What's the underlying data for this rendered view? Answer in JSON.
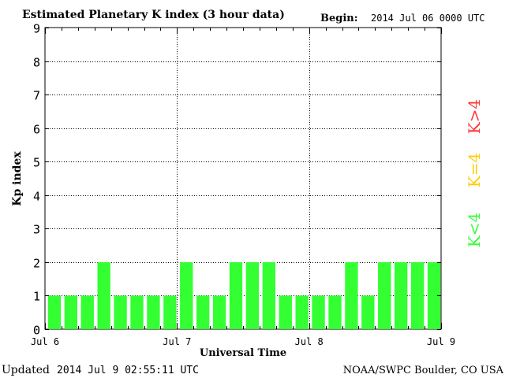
{
  "header": {
    "title": "Estimated Planetary K index (3 hour data)",
    "begin_label": "Begin:",
    "begin_value": "2014 Jul 06 0000 UTC"
  },
  "footer": {
    "updated_label": "Updated",
    "updated_value": "2014 Jul  9 02:55:11 UTC",
    "source": "NOAA/SWPC Boulder, CO USA"
  },
  "legend": {
    "high": "K>4",
    "equal": "K=4",
    "low": "K<4"
  },
  "colors": {
    "bar_low": "#33ff33",
    "bar_equal": "#ffcc00",
    "bar_high": "#ff3333",
    "legend_low": "#33ff33",
    "legend_equal": "#ffcc00",
    "legend_high": "#ff3333"
  },
  "chart_data": {
    "type": "bar",
    "title": "Estimated Planetary K index (3 hour data)",
    "xlabel": "Universal Time",
    "ylabel": "Kp index",
    "ylim": [
      0,
      9
    ],
    "yticks": [
      0,
      1,
      2,
      3,
      4,
      5,
      6,
      7,
      8,
      9
    ],
    "xlim": [
      "2014-07-06T00:00Z",
      "2014-07-09T00:00Z"
    ],
    "xticks": [
      {
        "label": "Jul 6",
        "time": "2014-07-06T00:00Z"
      },
      {
        "label": "Jul 7",
        "time": "2014-07-07T00:00Z"
      },
      {
        "label": "Jul 8",
        "time": "2014-07-08T00:00Z"
      },
      {
        "label": "Jul 9",
        "time": "2014-07-09T00:00Z"
      }
    ],
    "grid": true,
    "interval_hours": 3,
    "x": [
      "2014-07-06T00:00Z",
      "2014-07-06T03:00Z",
      "2014-07-06T06:00Z",
      "2014-07-06T09:00Z",
      "2014-07-06T12:00Z",
      "2014-07-06T15:00Z",
      "2014-07-06T18:00Z",
      "2014-07-06T21:00Z",
      "2014-07-07T00:00Z",
      "2014-07-07T03:00Z",
      "2014-07-07T06:00Z",
      "2014-07-07T09:00Z",
      "2014-07-07T12:00Z",
      "2014-07-07T15:00Z",
      "2014-07-07T18:00Z",
      "2014-07-07T21:00Z",
      "2014-07-08T00:00Z",
      "2014-07-08T03:00Z",
      "2014-07-08T06:00Z",
      "2014-07-08T09:00Z",
      "2014-07-08T12:00Z",
      "2014-07-08T15:00Z",
      "2014-07-08T18:00Z",
      "2014-07-08T21:00Z"
    ],
    "values": [
      1,
      1,
      1,
      2,
      1,
      1,
      1,
      1,
      2,
      1,
      1,
      2,
      2,
      2,
      1,
      1,
      1,
      1,
      2,
      1,
      2,
      2,
      2,
      2
    ]
  }
}
